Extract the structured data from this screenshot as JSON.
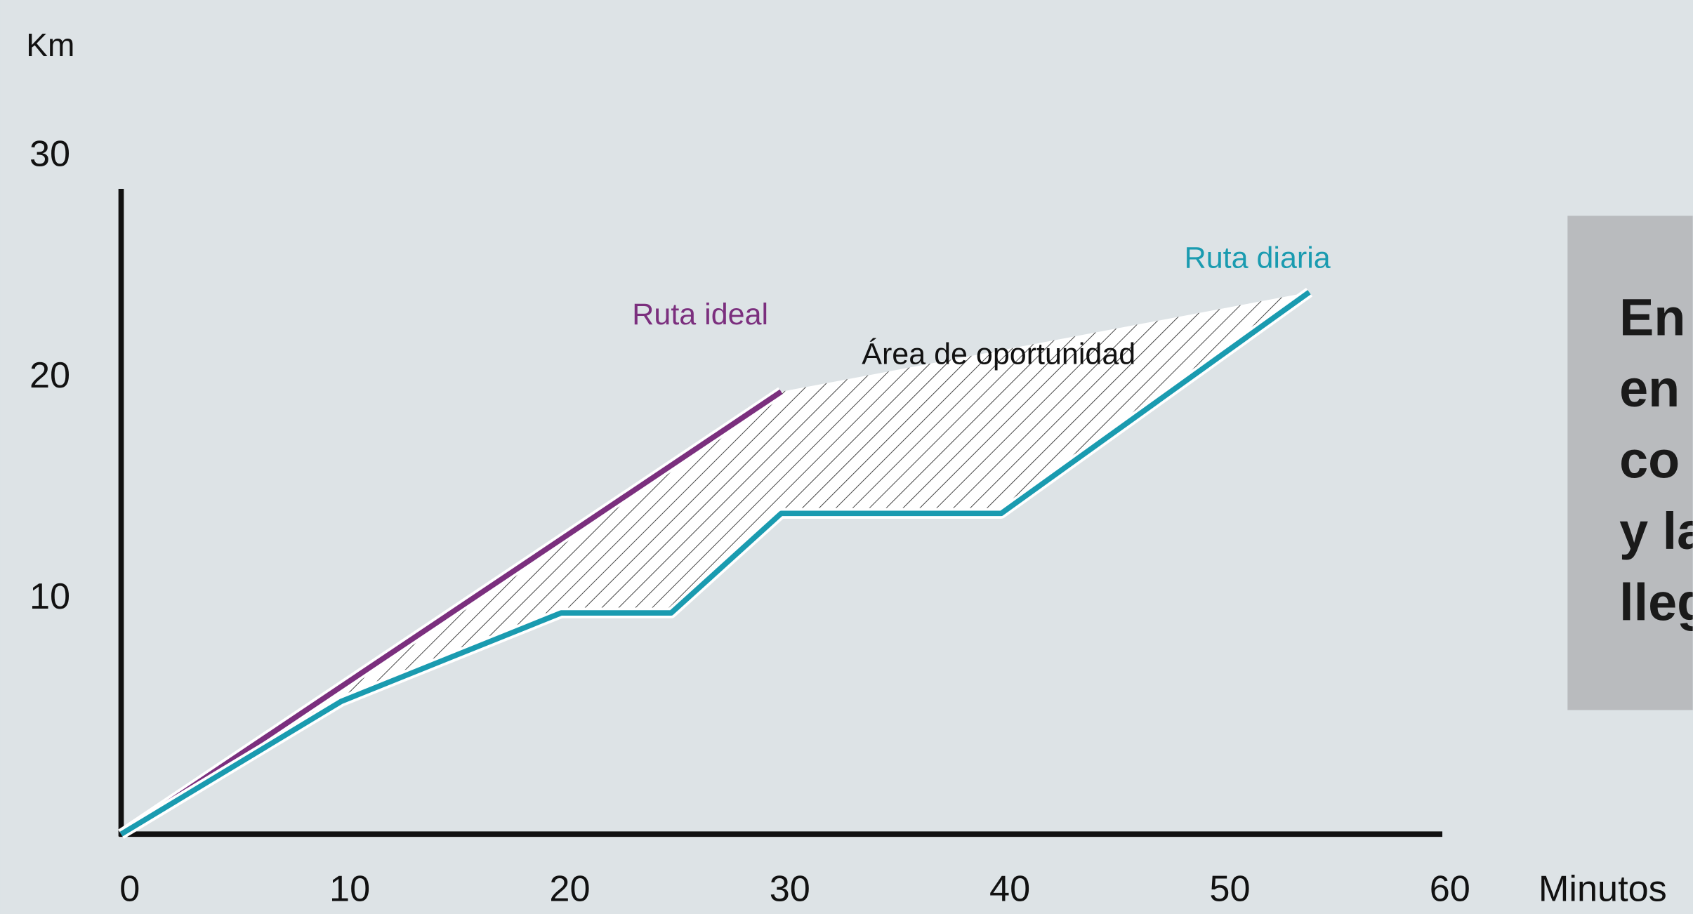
{
  "chart_data": {
    "type": "line",
    "y_label": "Km",
    "x_label": "Minutos",
    "xlim": [
      0,
      60
    ],
    "xticks": [
      0,
      10,
      20,
      30,
      40,
      50,
      60
    ],
    "ylim": [
      0,
      30
    ],
    "yticks": [
      10,
      20,
      30
    ],
    "series": [
      {
        "name": "Ruta ideal",
        "color": "#7b2f7e",
        "x": [
          0,
          30
        ],
        "values": [
          0,
          20
        ]
      },
      {
        "name": "Ruta diaria",
        "color": "#1a9bb0",
        "x": [
          0,
          10,
          20,
          25,
          30,
          40,
          54
        ],
        "values": [
          0,
          6,
          10,
          10,
          14.5,
          14.5,
          24.5
        ]
      }
    ],
    "annotation": "Área de oportunidad",
    "note_lines": [
      "En",
      "en",
      "co",
      "y la",
      "lleg"
    ]
  }
}
